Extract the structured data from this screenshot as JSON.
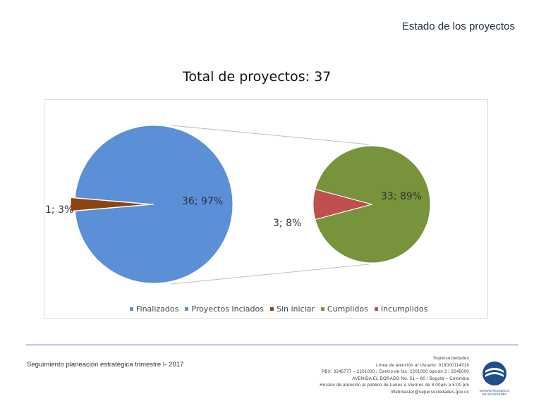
{
  "header": {
    "title": "Estado de los proyectos"
  },
  "chart_data": {
    "type": "pie",
    "title": "Total de proyectos: 37",
    "primary": {
      "slices": [
        {
          "name": "Sin iniciar",
          "value": 1,
          "percent": 3,
          "label": "1; 3%",
          "color": "#8b4513"
        },
        {
          "name": "Proyectos Inciados",
          "value": 36,
          "percent": 97,
          "label": "36; 97%",
          "color": "#5b8fd6"
        }
      ]
    },
    "secondary": {
      "slices": [
        {
          "name": "Cumplidos",
          "value": 33,
          "percent": 89,
          "label": "33; 89%",
          "color": "#77933c"
        },
        {
          "name": "Incumplidos",
          "value": 3,
          "percent": 8,
          "label": "3; 8%",
          "color": "#c0504d"
        }
      ]
    },
    "legend": [
      {
        "label": "Finalizados",
        "color": "#5b8fd6"
      },
      {
        "label": "Proyectos Inciados",
        "color": "#5b8fd6"
      },
      {
        "label": "Sin iniciar",
        "color": "#8b4513"
      },
      {
        "label": "Cumplidos",
        "color": "#77933c"
      },
      {
        "label": "Incumplidos",
        "color": "#c0504d"
      }
    ],
    "legend_position": "bottom"
  },
  "footer": {
    "left_text": "Seguimiento planeación estratégica trimestre I- 2017",
    "contact_lines": [
      "Supersociedades",
      "Línea de atención al Usuario: 018000114319",
      "PBX: 3245777 – 2201000 / Centro de fax: 2201000 opción 2 / 3245000",
      "AVENIDA EL DORADO No. 51 – 80 / Bogotá – Colombia",
      "Horario de atención al público de Lunes a Viernes de 8:00am a 5:00 pm",
      "Webmaster@supersociedades.gov.co"
    ],
    "logo_text": [
      "SUPERINTENDENCIA",
      "DE SOCIEDADES"
    ]
  }
}
